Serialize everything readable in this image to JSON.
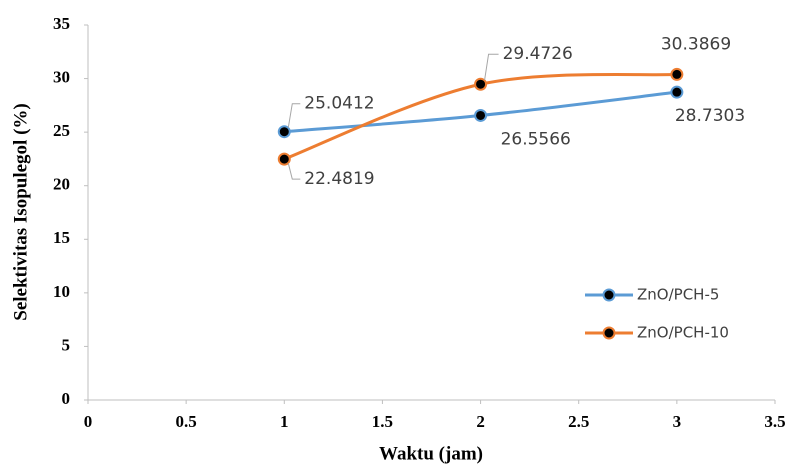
{
  "chart_data": {
    "type": "line",
    "x_label": "Waktu (jam)",
    "y_label": "Selektivitas Isopulegol (%)",
    "x": [
      1,
      2,
      3
    ],
    "series": [
      {
        "name": "ZnO/PCH-5",
        "color": "#5b9bd5",
        "values": [
          25.0412,
          26.5566,
          28.7303
        ]
      },
      {
        "name": "ZnO/PCH-10",
        "color": "#ed7d31",
        "values": [
          22.4819,
          29.4726,
          30.3869
        ]
      }
    ],
    "xlim": [
      0,
      3.5
    ],
    "xticks": [
      0,
      0.5,
      1,
      1.5,
      2,
      2.5,
      3,
      3.5
    ],
    "ylim": [
      0,
      35
    ],
    "yticks": [
      0,
      5,
      10,
      15,
      20,
      25,
      30,
      35
    ],
    "grid": false,
    "smooth": true,
    "legend": "lower right",
    "data_labels": true
  }
}
